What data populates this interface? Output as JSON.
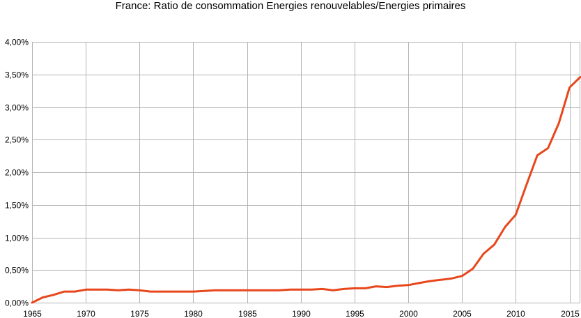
{
  "chart_data": {
    "type": "line",
    "title": "France: Ratio de consommation Energies renouvelables/Energies primaires",
    "xlabel": "",
    "ylabel": "",
    "xlim": [
      1965,
      2016
    ],
    "ylim": [
      0,
      4.0
    ],
    "x_ticks": [
      1965,
      1970,
      1975,
      1980,
      1985,
      1990,
      1995,
      2000,
      2005,
      2010,
      2015
    ],
    "y_ticks": [
      {
        "value": 0.0,
        "label": "0,00%"
      },
      {
        "value": 0.5,
        "label": "0,50%"
      },
      {
        "value": 1.0,
        "label": "1,00%"
      },
      {
        "value": 1.5,
        "label": "1,50%"
      },
      {
        "value": 2.0,
        "label": "2,00%"
      },
      {
        "value": 2.5,
        "label": "2,50%"
      },
      {
        "value": 3.0,
        "label": "3,00%"
      },
      {
        "value": 3.5,
        "label": "3,50%"
      },
      {
        "value": 4.0,
        "label": "4,00%"
      }
    ],
    "grid": true,
    "legend": "none",
    "line_color": "#e8471c",
    "grid_color": "#b3b3b3",
    "series": [
      {
        "x": [
          1965,
          1966,
          1967,
          1968,
          1969,
          1970,
          1971,
          1972,
          1973,
          1974,
          1975,
          1976,
          1977,
          1978,
          1979,
          1980,
          1981,
          1982,
          1983,
          1984,
          1985,
          1986,
          1987,
          1988,
          1989,
          1990,
          1991,
          1992,
          1993,
          1994,
          1995,
          1996,
          1997,
          1998,
          1999,
          2000,
          2001,
          2002,
          2003,
          2004,
          2005,
          2006,
          2007,
          2008,
          2009,
          2010,
          2011,
          2012,
          2013,
          2014,
          2015,
          2016
        ],
        "values": [
          0.0,
          0.08,
          0.12,
          0.17,
          0.17,
          0.2,
          0.2,
          0.2,
          0.19,
          0.2,
          0.19,
          0.17,
          0.17,
          0.17,
          0.17,
          0.17,
          0.18,
          0.19,
          0.19,
          0.19,
          0.19,
          0.19,
          0.19,
          0.19,
          0.2,
          0.2,
          0.2,
          0.21,
          0.19,
          0.21,
          0.22,
          0.22,
          0.25,
          0.24,
          0.26,
          0.27,
          0.3,
          0.33,
          0.35,
          0.37,
          0.41,
          0.52,
          0.75,
          0.89,
          1.16,
          1.35,
          1.81,
          2.26,
          2.37,
          2.75,
          3.3,
          3.46
        ]
      }
    ]
  }
}
